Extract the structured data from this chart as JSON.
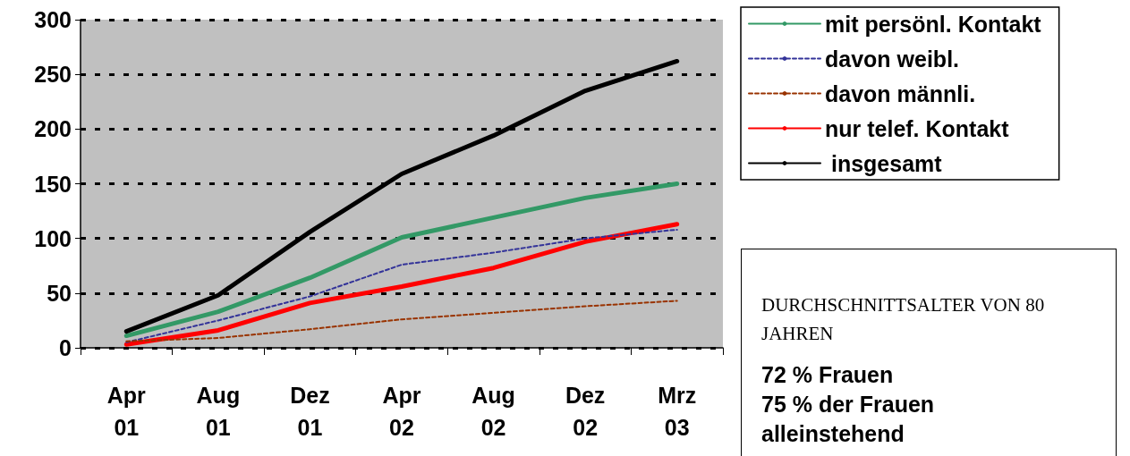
{
  "chart_data": {
    "type": "line",
    "categories": [
      "Apr\n01",
      "Aug\n01",
      "Dez\n01",
      "Apr\n02",
      "Aug\n02",
      "Dez\n02",
      "Mrz\n03"
    ],
    "series": [
      {
        "name": "mit persönl. Kontakt",
        "color": "#339966",
        "line_style": "solid",
        "values": [
          11,
          33,
          64,
          101,
          119,
          137,
          150
        ]
      },
      {
        "name": "davon weibl.",
        "color": "#333399",
        "line_style": "dashed",
        "values": [
          5,
          25,
          47,
          76,
          87,
          100,
          108
        ]
      },
      {
        "name": "davon männli.",
        "color": "#993300",
        "line_style": "dashed",
        "values": [
          6,
          9,
          17,
          26,
          32,
          38,
          43
        ]
      },
      {
        "name": "nur telef. Kontakt",
        "color": "#ff0000",
        "line_style": "solid",
        "values": [
          3,
          16,
          41,
          56,
          73,
          97,
          113
        ]
      },
      {
        "name": " insgesamt",
        "color": "#000000",
        "line_style": "solid",
        "values": [
          15,
          48,
          106,
          159,
          194,
          235,
          262
        ]
      }
    ],
    "ylim": [
      0,
      300
    ],
    "yticks": [
      0,
      50,
      100,
      150,
      200,
      250,
      300
    ],
    "grid": "y",
    "legend": "top right",
    "marker": "none",
    "annotations": [
      "DURCHSCHNITTSALTER VON 80 JAHREN",
      "72 % Frauen",
      "75 % der Frauen alleinstehend"
    ]
  }
}
